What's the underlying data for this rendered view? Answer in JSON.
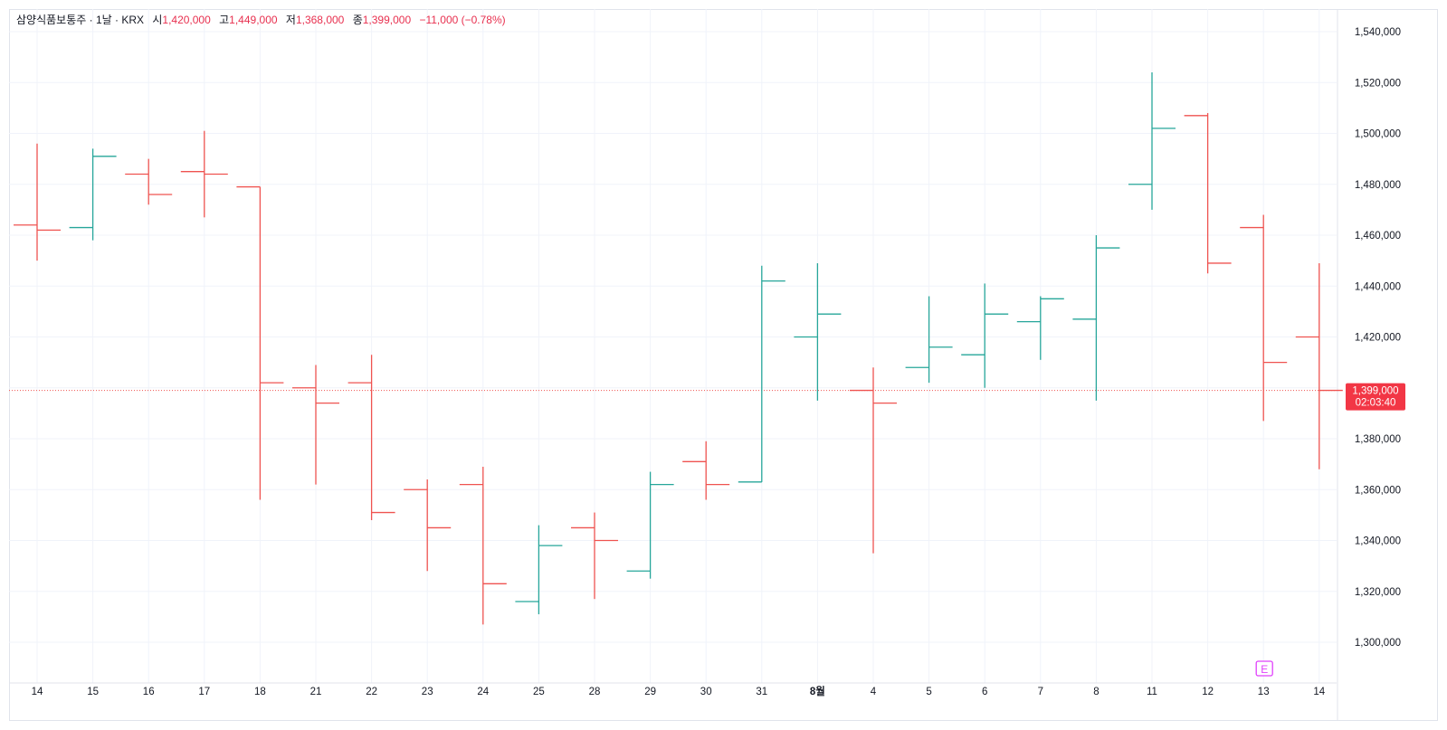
{
  "legend": {
    "symbol": "삼양식품보통주 · 1날 · KRX",
    "open_label": "시",
    "open": "1,420,000",
    "high_label": "고",
    "high": "1,449,000",
    "low_label": "저",
    "low": "1,368,000",
    "close_label": "종",
    "close": "1,399,000",
    "change": "−11,000 (−0.78%)"
  },
  "price_tag": {
    "price": "1,399,000",
    "countdown": "02:03:40"
  },
  "earnings_marker": {
    "label": "E"
  },
  "colors": {
    "up": "#26a69a",
    "down": "#ef5350",
    "grid": "#f0f3fa",
    "price_line": "#ef5350",
    "tag_bg": "#f23645",
    "earnings": "#e040fb"
  },
  "chart_data": {
    "type": "ohlc",
    "ylim": [
      1290000,
      1545000
    ],
    "yticks": [
      1300000,
      1320000,
      1340000,
      1360000,
      1380000,
      1400000,
      1420000,
      1440000,
      1460000,
      1480000,
      1500000,
      1520000,
      1540000
    ],
    "ytick_labels": [
      "1,300,000",
      "1,320,000",
      "1,340,000",
      "1,360,000",
      "1,380,000",
      "1,400,000",
      "1,420,000",
      "1,440,000",
      "1,460,000",
      "1,480,000",
      "1,500,000",
      "1,520,000",
      "1,540,000"
    ],
    "categories": [
      "14",
      "15",
      "16",
      "17",
      "18",
      "21",
      "22",
      "23",
      "24",
      "25",
      "28",
      "29",
      "30",
      "31",
      "8월",
      "4",
      "5",
      "6",
      "7",
      "8",
      "11",
      "12",
      "13",
      "14"
    ],
    "bold_categories": [
      "8월"
    ],
    "series": [
      {
        "values": [
          [
            1464000,
            1496000,
            1450000,
            1462000
          ],
          [
            1463000,
            1494000,
            1458000,
            1491000
          ],
          [
            1484000,
            1490000,
            1472000,
            1476000
          ],
          [
            1485000,
            1501000,
            1467000,
            1484000
          ],
          [
            1479000,
            1479000,
            1356000,
            1402000
          ],
          [
            1400000,
            1409000,
            1362000,
            1394000
          ],
          [
            1402000,
            1413000,
            1348000,
            1351000
          ],
          [
            1360000,
            1364000,
            1328000,
            1345000
          ],
          [
            1362000,
            1369000,
            1307000,
            1323000
          ],
          [
            1316000,
            1346000,
            1311000,
            1338000
          ],
          [
            1345000,
            1351000,
            1317000,
            1340000
          ],
          [
            1328000,
            1367000,
            1325000,
            1362000
          ],
          [
            1371000,
            1379000,
            1356000,
            1362000
          ],
          [
            1363000,
            1448000,
            1363000,
            1442000
          ],
          [
            1420000,
            1449000,
            1395000,
            1429000
          ],
          [
            1399000,
            1408000,
            1335000,
            1394000
          ],
          [
            1408000,
            1436000,
            1402000,
            1416000
          ],
          [
            1413000,
            1441000,
            1400000,
            1429000
          ],
          [
            1426000,
            1436000,
            1411000,
            1435000
          ],
          [
            1427000,
            1460000,
            1395000,
            1455000
          ],
          [
            1480000,
            1524000,
            1470000,
            1502000
          ],
          [
            1507000,
            1508000,
            1445000,
            1449000
          ],
          [
            1463000,
            1468000,
            1387000,
            1410000
          ],
          [
            1420000,
            1449000,
            1368000,
            1399000
          ]
        ]
      }
    ],
    "last_price": 1399000,
    "earnings_index": 22
  }
}
